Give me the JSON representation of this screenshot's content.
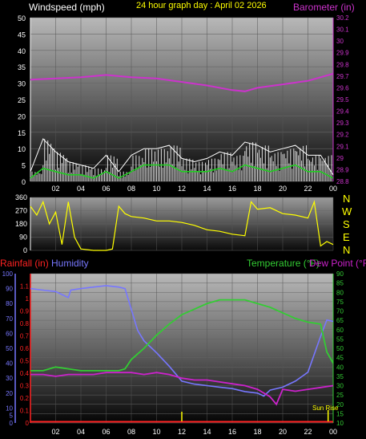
{
  "header": {
    "wind_title": "Windspeed (mph)",
    "date_title": "24 hour graph day : April 02 2026",
    "baro_title": "Barometer (in)"
  },
  "colors": {
    "background": "#000000",
    "wind_gust": "#ffffff",
    "wind_avg": "#22cc22",
    "barometer": "#cc33cc",
    "direction": "#ffff00",
    "humidity": "#7777ff",
    "temperature": "#33cc33",
    "dew_point": "#cc22cc",
    "rainfall": "#ff2222",
    "sun": "#ffff00",
    "date": "#ffff00",
    "compass": "#ffff00"
  },
  "chart_data": [
    {
      "id": "wind-barometer",
      "type": "line",
      "title": "24 hour graph day : April 02 2026",
      "x_ticks": [
        "02",
        "04",
        "06",
        "08",
        "10",
        "12",
        "14",
        "16",
        "18",
        "20",
        "22",
        "00"
      ],
      "left_axis": {
        "label": "Windspeed (mph)",
        "ylim": [
          0,
          50
        ],
        "ticks": [
          0,
          5,
          10,
          15,
          20,
          25,
          30,
          35,
          40,
          45,
          50
        ]
      },
      "right_axis": {
        "label": "Barometer (in)",
        "ylim": [
          28.8,
          30.2
        ],
        "ticks": [
          "28.8",
          "28.9",
          "29",
          "29.1",
          "29.2",
          "29.3",
          "29.4",
          "29.5",
          "29.6",
          "29.7",
          "29.8",
          "29.9",
          "30",
          "30.1",
          "30.2"
        ]
      },
      "grid": true,
      "series": [
        {
          "name": "Barometer (in)",
          "axis": "right",
          "x": [
            0,
            2,
            4,
            6,
            8,
            10,
            12,
            14,
            16,
            17,
            18,
            20,
            22,
            24
          ],
          "y": [
            29.67,
            29.68,
            29.69,
            29.71,
            29.69,
            29.68,
            29.65,
            29.62,
            29.58,
            29.57,
            29.6,
            29.63,
            29.66,
            29.72
          ]
        }
      ],
      "wind_gust": {
        "x": [
          0,
          1,
          2,
          3,
          4,
          5,
          6,
          7,
          8,
          9,
          10,
          11,
          12,
          13,
          14,
          15,
          16,
          17,
          18,
          19,
          20,
          21,
          22,
          23,
          24
        ],
        "y": [
          3,
          13,
          9,
          6,
          5,
          4,
          8,
          3,
          8,
          10,
          10,
          11,
          7,
          6,
          7,
          9,
          8,
          12,
          11,
          9,
          10,
          11,
          8,
          8,
          2
        ]
      },
      "wind_avg": {
        "x": [
          0,
          1,
          2,
          3,
          4,
          5,
          6,
          7,
          8,
          9,
          10,
          11,
          12,
          13,
          14,
          15,
          16,
          17,
          18,
          19,
          20,
          21,
          22,
          23,
          24
        ],
        "y": [
          1,
          4,
          3,
          2,
          2,
          1,
          3,
          1,
          3,
          5,
          5,
          5,
          3,
          3,
          3,
          4,
          3,
          5,
          4,
          3,
          4,
          5,
          3,
          3,
          1
        ]
      }
    },
    {
      "id": "wind-direction",
      "type": "line",
      "left_axis": {
        "ylim": [
          0,
          360
        ],
        "ticks": [
          0,
          90,
          180,
          270,
          360
        ]
      },
      "compass_labels": [
        "N",
        "W",
        "S",
        "E",
        "N"
      ],
      "grid": true,
      "series": [
        {
          "name": "Wind direction",
          "x": [
            0,
            0.5,
            1,
            1.5,
            2,
            2.5,
            3,
            3.5,
            4,
            5,
            6,
            6.5,
            7,
            7.5,
            8,
            9,
            10,
            11,
            12,
            13,
            14,
            15,
            16,
            17,
            17.5,
            18,
            19,
            20,
            21,
            22,
            22.5,
            23,
            23.5,
            24
          ],
          "y": [
            300,
            240,
            330,
            180,
            260,
            40,
            330,
            90,
            10,
            0,
            0,
            10,
            300,
            250,
            230,
            220,
            200,
            200,
            190,
            170,
            140,
            130,
            110,
            100,
            330,
            280,
            290,
            250,
            240,
            220,
            330,
            30,
            60,
            40
          ]
        }
      ]
    },
    {
      "id": "humidity-temperature",
      "type": "line",
      "x_ticks": [
        "02",
        "04",
        "06",
        "08",
        "10",
        "12",
        "14",
        "16",
        "18",
        "20",
        "22",
        "00"
      ],
      "axes": [
        {
          "label": "Rainfall (in)",
          "ylim": [
            0,
            1.2
          ],
          "ticks": [
            "0",
            "0.1",
            "0.2",
            "0.3",
            "0.4",
            "0.5",
            "0.6",
            "0.7",
            "0.8",
            "0.9",
            "1",
            "1.1"
          ]
        },
        {
          "label": "Humidity",
          "ylim": [
            0,
            100
          ],
          "ticks": [
            0,
            5,
            10,
            20,
            30,
            40,
            50,
            60,
            70,
            80,
            90,
            100
          ]
        },
        {
          "label": "Temperature (°F)",
          "ylim": [
            10,
            90
          ],
          "ticks": [
            10,
            15,
            20,
            25,
            30,
            35,
            40,
            45,
            50,
            55,
            60,
            65,
            70,
            75,
            80,
            85,
            90
          ]
        },
        {
          "label": "Dew Point (°F)",
          "ylim": [
            10,
            90
          ]
        }
      ],
      "annotations": [
        "Sun Rise"
      ],
      "grid": true,
      "series": [
        {
          "name": "Humidity",
          "axis": "Humidity",
          "x": [
            0,
            1,
            2,
            2.5,
            3,
            3.2,
            4,
            5,
            6,
            7,
            7.5,
            8,
            8.5,
            9,
            10,
            11,
            12,
            13,
            14,
            15,
            16,
            17,
            18,
            18.5,
            19,
            20,
            21,
            22,
            23,
            23.5,
            24
          ],
          "y": [
            90,
            89,
            88,
            86,
            84,
            89,
            90,
            91,
            92,
            91,
            90,
            76,
            62,
            55,
            47,
            38,
            28,
            26,
            25,
            24,
            23,
            21,
            20,
            18,
            22,
            24,
            28,
            34,
            58,
            69,
            68
          ]
        },
        {
          "name": "Temperature (°F)",
          "axis": "Temperature (°F)",
          "x": [
            0,
            1,
            2,
            3,
            4,
            5,
            6,
            7,
            7.5,
            8,
            9,
            10,
            11,
            12,
            13,
            14,
            15,
            16,
            17,
            18,
            19,
            20,
            21,
            22,
            23,
            23.5,
            24
          ],
          "y": [
            38,
            38,
            40,
            39,
            38,
            38,
            38,
            38,
            39,
            44,
            50,
            57,
            63,
            68,
            71,
            74,
            76,
            76,
            76,
            74,
            72,
            69,
            66,
            64,
            63,
            48,
            42
          ]
        },
        {
          "name": "Dew Point (°F)",
          "axis": "Dew Point (°F)",
          "x": [
            0,
            1,
            2,
            3,
            4,
            5,
            6,
            7,
            8,
            9,
            10,
            11,
            12,
            13,
            14,
            15,
            16,
            17,
            18,
            19,
            19.5,
            20,
            21,
            22,
            23,
            24
          ],
          "y": [
            36,
            36,
            35,
            36,
            36,
            36,
            37,
            37,
            37,
            36,
            37,
            36,
            34,
            33,
            33,
            32,
            31,
            30,
            28,
            24,
            20,
            28,
            27,
            28,
            29,
            30
          ]
        },
        {
          "name": "Rainfall (in)",
          "axis": "Rainfall (in)",
          "x": [
            0,
            24
          ],
          "y": [
            0.01,
            0.01
          ]
        }
      ]
    }
  ]
}
